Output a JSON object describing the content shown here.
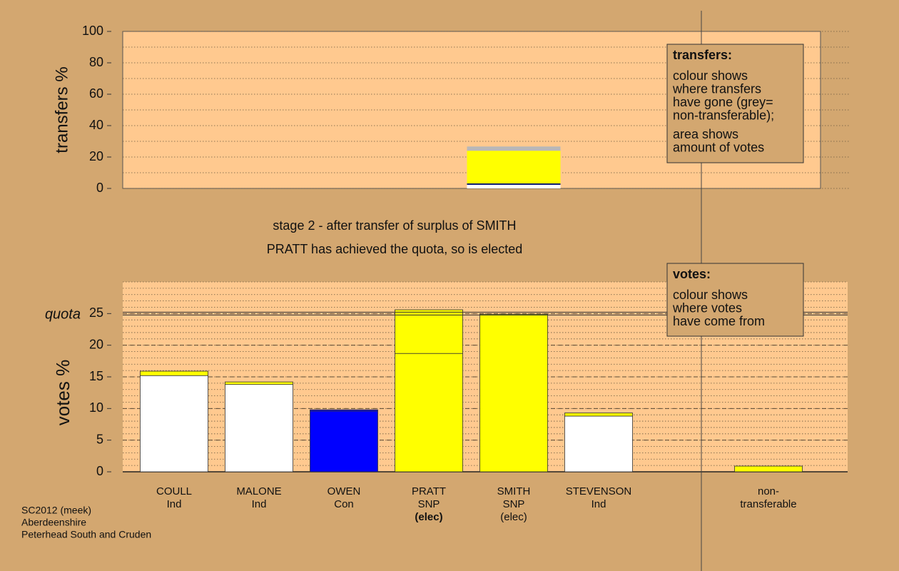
{
  "titles": [
    "stage 2 - after transfer of surplus of SMITH",
    "PRATT has achieved the quota, so is elected"
  ],
  "footer": [
    "SC2012 (meek)",
    "Aberdeenshire",
    "Peterhead South and Cruden"
  ],
  "legend": {
    "transfers": {
      "title": "transfers:",
      "paragraphs": [
        [
          "colour shows",
          "where transfers",
          "have gone (grey=",
          "non-transferable);"
        ],
        [
          "area shows",
          "amount of votes"
        ]
      ]
    },
    "votes": {
      "title": "votes:",
      "paragraphs": [
        [
          "colour shows",
          "where votes",
          "have come from"
        ]
      ]
    }
  },
  "chart_data": [
    {
      "type": "bar",
      "stacked": true,
      "ylabel": "transfers %",
      "ylim": [
        0,
        100
      ],
      "yticks": [
        0,
        20,
        40,
        60,
        80,
        100
      ],
      "minor_grid_step": 10,
      "series": [
        {
          "color": "#ffffff",
          "values": [
            null,
            null,
            null,
            null,
            2.3,
            null,
            null,
            null
          ]
        },
        {
          "color": "#0a1a6e",
          "values": [
            null,
            null,
            null,
            null,
            0.9,
            null,
            null,
            null
          ]
        },
        {
          "color": "#ffff00",
          "values": [
            null,
            null,
            null,
            null,
            20.8,
            null,
            null,
            null
          ]
        },
        {
          "color": "#b8b8b8",
          "values": [
            null,
            null,
            null,
            null,
            2.7,
            null,
            null,
            null
          ]
        }
      ]
    },
    {
      "type": "bar",
      "stacked": true,
      "ylabel": "votes %",
      "ylim": [
        0,
        30
      ],
      "yticks": [
        0,
        5,
        10,
        15,
        20,
        25
      ],
      "minor_grid_step": 1,
      "quota": 25,
      "quota_label": "quota",
      "bold_label_index": 3,
      "categories": [
        [
          "COULL",
          "Ind"
        ],
        [
          "MALONE",
          "Ind"
        ],
        [
          "OWEN",
          "Con"
        ],
        [
          "PRATT",
          "SNP",
          "(elec)"
        ],
        [
          "SMITH",
          "SNP",
          "(elec)"
        ],
        [
          "STEVENSON",
          "Ind"
        ],
        null,
        [
          "non-",
          "transferable"
        ]
      ],
      "series": [
        {
          "colors": [
            "#ffffff",
            "#ffffff",
            "#0000ff",
            "#ffff00",
            "#ffff00",
            "#ffffff",
            null,
            "#ffff00"
          ],
          "values": [
            15.2,
            13.8,
            9.6,
            18.7,
            24.9,
            8.8,
            null,
            0.9
          ]
        },
        {
          "colors": [
            "#ffff00",
            "#ffff00",
            "#0000ff",
            "#ffff00",
            null,
            "#ffff00",
            null,
            null
          ],
          "values": [
            0.7,
            0.4,
            0.2,
            6.9,
            null,
            0.5,
            null,
            null
          ]
        }
      ]
    }
  ]
}
